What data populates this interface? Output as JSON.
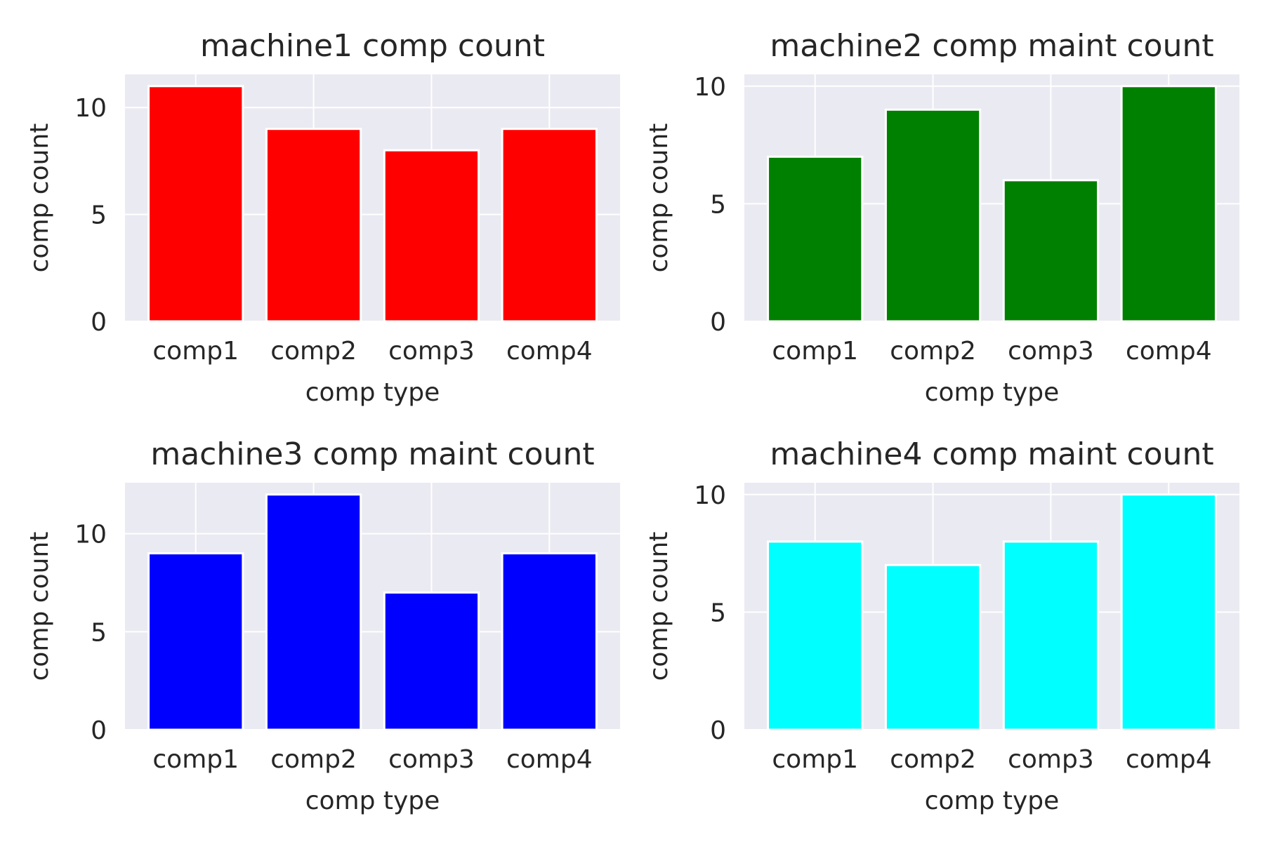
{
  "chart_data": [
    {
      "type": "bar",
      "title": "machine1 comp count",
      "xlabel": "comp type",
      "ylabel": "comp count",
      "categories": [
        "comp1",
        "comp2",
        "comp3",
        "comp4"
      ],
      "values": [
        11,
        9,
        8,
        9
      ],
      "color": "#ff0000",
      "ylim": [
        0,
        11.55
      ],
      "yticks": [
        0,
        5,
        10
      ],
      "grid": true
    },
    {
      "type": "bar",
      "title": "machine2 comp maint count",
      "xlabel": "comp type",
      "ylabel": "comp count",
      "categories": [
        "comp1",
        "comp2",
        "comp3",
        "comp4"
      ],
      "values": [
        7,
        9,
        6,
        10
      ],
      "color": "#008000",
      "ylim": [
        0,
        10.5
      ],
      "yticks": [
        0,
        5,
        10
      ],
      "grid": true
    },
    {
      "type": "bar",
      "title": "machine3 comp maint count",
      "xlabel": "comp type",
      "ylabel": "comp count",
      "categories": [
        "comp1",
        "comp2",
        "comp3",
        "comp4"
      ],
      "values": [
        9,
        12,
        7,
        9
      ],
      "color": "#0000ff",
      "ylim": [
        0,
        12.6
      ],
      "yticks": [
        0,
        5,
        10
      ],
      "grid": true
    },
    {
      "type": "bar",
      "title": "machine4 comp maint count",
      "xlabel": "comp type",
      "ylabel": "comp count",
      "categories": [
        "comp1",
        "comp2",
        "comp3",
        "comp4"
      ],
      "values": [
        8,
        7,
        8,
        10
      ],
      "color": "#00ffff",
      "ylim": [
        0,
        10.5
      ],
      "yticks": [
        0,
        5,
        10
      ],
      "grid": true
    }
  ]
}
